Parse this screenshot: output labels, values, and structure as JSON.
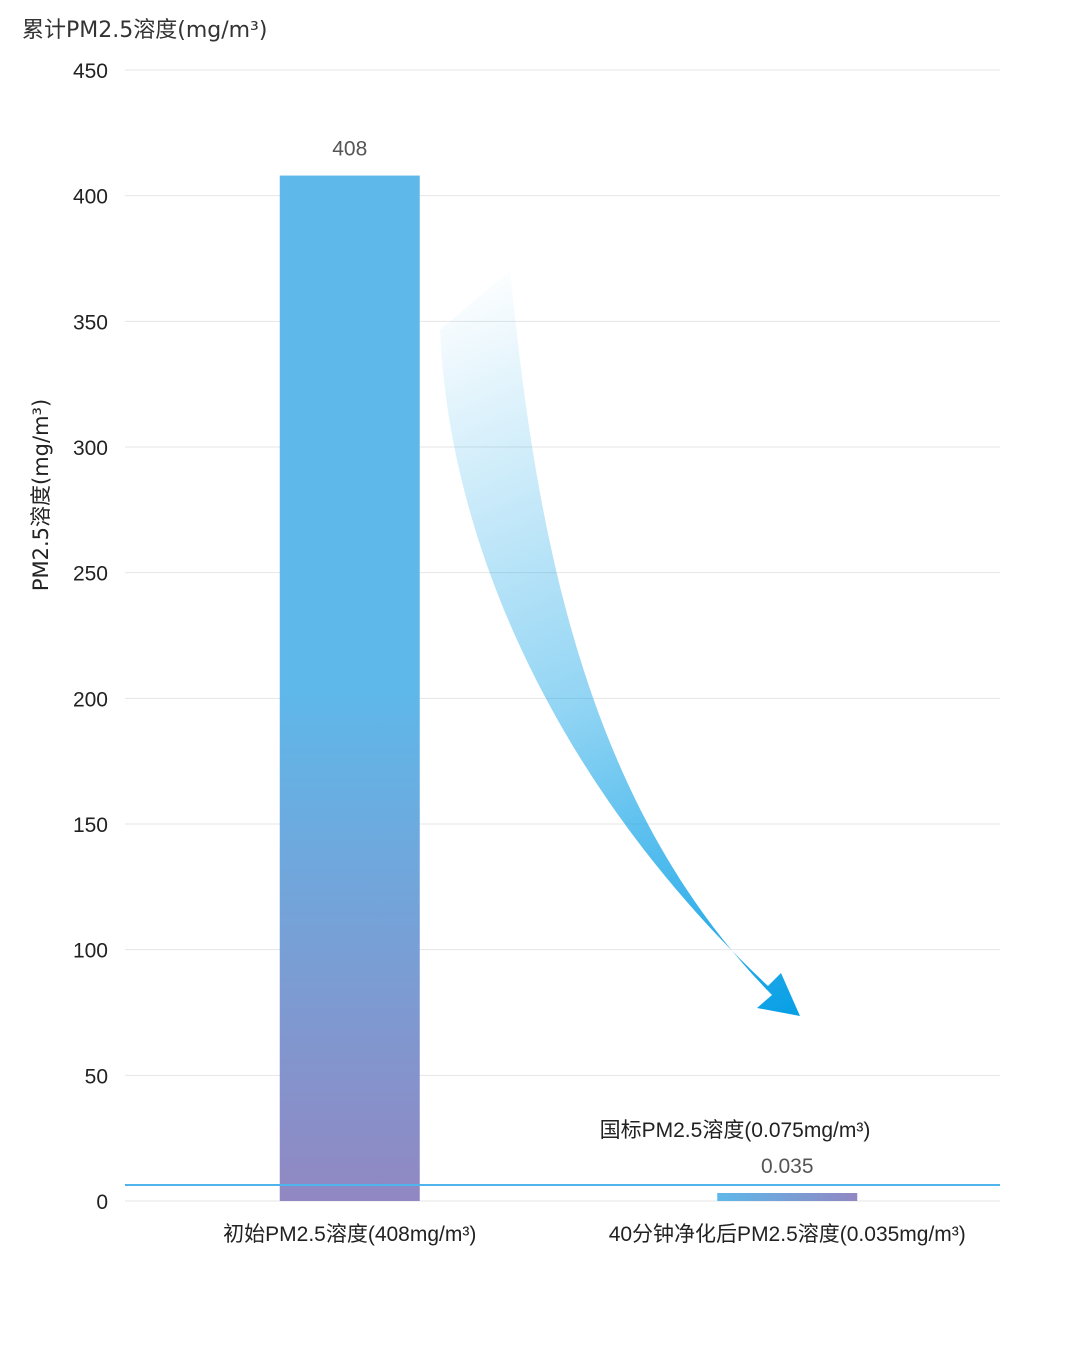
{
  "page_title": "累计PM2.5溶度(mg/m³)",
  "chart_data": {
    "type": "bar",
    "ylabel": "PM2.5溶度(mg/m³)",
    "ylim": [
      0,
      450
    ],
    "yticks": [
      0,
      50,
      100,
      150,
      200,
      250,
      300,
      350,
      400,
      450
    ],
    "grid": true,
    "categories": [
      "初始PM2.5溶度(408mg/m³)",
      "40分钟净化后PM2.5溶度(0.035mg/m³)"
    ],
    "values": [
      408,
      0.035
    ],
    "value_labels": [
      "408",
      "0.035"
    ],
    "reference_line": {
      "label": "国标PM2.5溶度(0.075mg/m³)",
      "value": 0.075
    },
    "annotation": "decreasing-arrow"
  },
  "colors": {
    "bar_top": "#5eb8ea",
    "bar_bottom": "#9187c2",
    "reference_line": "#4fb3ec",
    "arrow": "#0aa0e6",
    "grid": "#e6e6e6"
  }
}
